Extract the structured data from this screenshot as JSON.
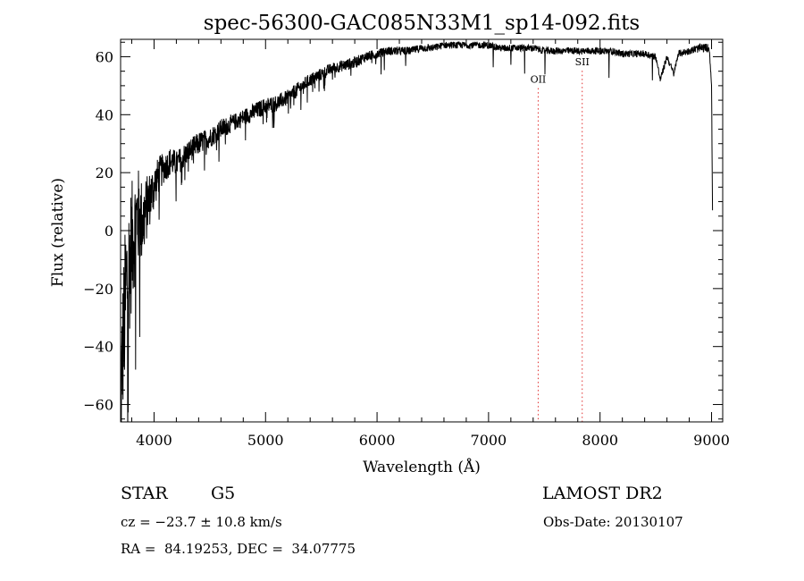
{
  "chart_data": {
    "type": "line",
    "title": "spec-56300-GAC085N33M1_sp14-092.fits",
    "xlabel": "Wavelength (Å)",
    "ylabel": "Flux (relative)",
    "xlim": [
      3700,
      9100
    ],
    "ylim": [
      -66,
      66
    ],
    "xticks": [
      4000,
      5000,
      6000,
      7000,
      8000,
      9000
    ],
    "xtick_labels": [
      "4000",
      "5000",
      "6000",
      "7000",
      "8000",
      "9000"
    ],
    "yticks": [
      -60,
      -40,
      -20,
      0,
      20,
      40,
      60
    ],
    "ytick_labels": [
      "−60",
      "−40",
      "−20",
      "0",
      "20",
      "40",
      "60"
    ],
    "grid": false,
    "line_color": "#000000",
    "marker_color": "#e03030",
    "lines": [
      {
        "label": "OII",
        "x": 7445,
        "label_y": 51
      },
      {
        "label": "SII",
        "x": 7840,
        "label_y": 57
      }
    ],
    "series": [
      {
        "x": [
          3700,
          3720,
          3750,
          3800,
          3850,
          3900,
          3950,
          4000,
          4050,
          4100,
          4150,
          4200,
          4300,
          4400,
          4500,
          4600,
          4700,
          4800,
          4900,
          5000,
          5100,
          5200,
          5300,
          5400,
          5500,
          5600,
          5700,
          5800,
          5900,
          6000,
          6100,
          6200,
          6300,
          6400,
          6500,
          6600,
          6700,
          6800,
          6900,
          7000,
          7100,
          7200,
          7300,
          7400,
          7500,
          7600,
          7700,
          7800,
          7900,
          8000,
          8100,
          8200,
          8300,
          8400,
          8500,
          8540,
          8600,
          8662,
          8700,
          8800,
          8900,
          8980,
          9000,
          9010
        ],
        "y": [
          -60,
          -40,
          -20,
          -5,
          5,
          3,
          10,
          15,
          20,
          22,
          24,
          23,
          27,
          30,
          32,
          35,
          37,
          39,
          41,
          43,
          44,
          46,
          49,
          52,
          54,
          56,
          57,
          58,
          60,
          61,
          62,
          62,
          62,
          63,
          63,
          64,
          64,
          64,
          64,
          64,
          63,
          63,
          63,
          63,
          62,
          62,
          62,
          62,
          62,
          62,
          62,
          61,
          61,
          61,
          60,
          52,
          60,
          54,
          61,
          62,
          63,
          63,
          50,
          0
        ],
        "noise": [
          20,
          25,
          28,
          22,
          18,
          14,
          10,
          8,
          6,
          5,
          5,
          4.5,
          4,
          4,
          3.5,
          3.5,
          3,
          3,
          3,
          3,
          2.8,
          2.6,
          2.5,
          2.3,
          2.2,
          2,
          2,
          2,
          1.8,
          1.6,
          1.5,
          1.5,
          1.4,
          1.4,
          1.3,
          1.2,
          1.2,
          1.2,
          1.2,
          1.2,
          1.2,
          1.2,
          1.2,
          1.2,
          1.2,
          1.2,
          1.2,
          1.2,
          1.2,
          1.2,
          1.2,
          1.2,
          1.2,
          1.2,
          1.2,
          1,
          1.2,
          1,
          1.2,
          1.2,
          1.5,
          1.5,
          0,
          0
        ]
      }
    ]
  },
  "info": {
    "class_label": "STAR",
    "subclass": "G5",
    "survey": "LAMOST DR2",
    "cz": "cz = −23.7 ± 10.8 km/s",
    "obs_date": "Obs-Date: 20130107",
    "coords": "RA =  84.19253, DEC =  34.07775"
  }
}
